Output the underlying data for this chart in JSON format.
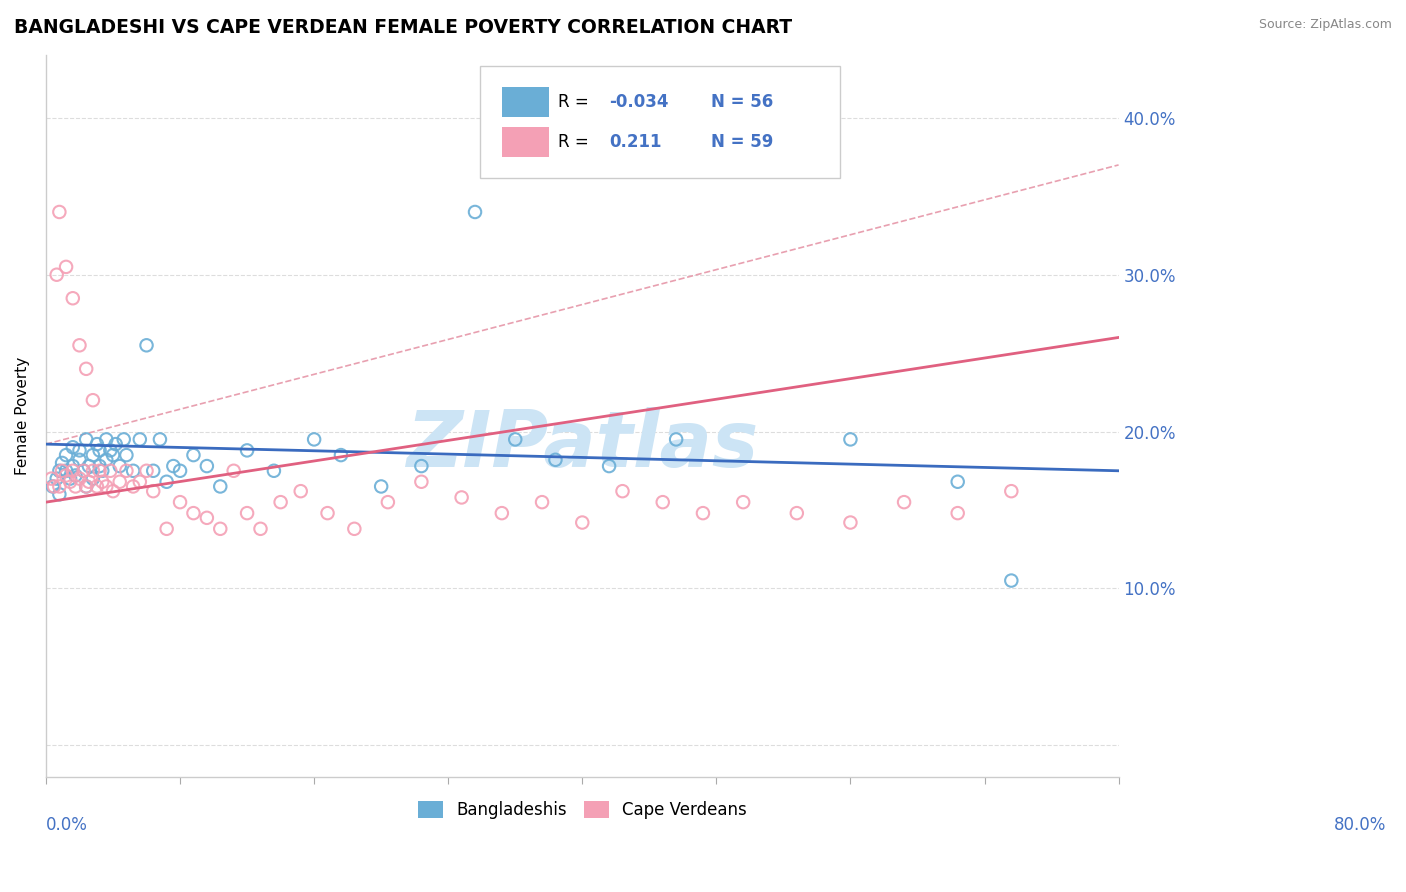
{
  "title": "BANGLADESHI VS CAPE VERDEAN FEMALE POVERTY CORRELATION CHART",
  "source": "Source: ZipAtlas.com",
  "ylabel": "Female Poverty",
  "xlim": [
    0.0,
    0.8
  ],
  "ylim": [
    -0.02,
    0.44
  ],
  "yticks": [
    0.0,
    0.1,
    0.2,
    0.3,
    0.4
  ],
  "ytick_labels": [
    "",
    "10.0%",
    "20.0%",
    "30.0%",
    "40.0%"
  ],
  "color_blue": "#6aaed6",
  "color_pink": "#f4a0b5",
  "color_blue_line": "#3a6bbf",
  "color_pink_line": "#e06080",
  "color_dash": "#e8a0b0",
  "watermark_color": "#cce4f5",
  "blue_scatter_x": [
    0.005,
    0.008,
    0.01,
    0.01,
    0.012,
    0.015,
    0.015,
    0.018,
    0.02,
    0.02,
    0.022,
    0.025,
    0.025,
    0.028,
    0.03,
    0.03,
    0.032,
    0.035,
    0.035,
    0.038,
    0.04,
    0.04,
    0.042,
    0.045,
    0.045,
    0.048,
    0.05,
    0.052,
    0.055,
    0.058,
    0.06,
    0.065,
    0.07,
    0.075,
    0.08,
    0.085,
    0.09,
    0.095,
    0.1,
    0.11,
    0.12,
    0.13,
    0.15,
    0.17,
    0.2,
    0.22,
    0.25,
    0.28,
    0.32,
    0.35,
    0.38,
    0.42,
    0.47,
    0.6,
    0.68,
    0.72
  ],
  "blue_scatter_y": [
    0.165,
    0.17,
    0.175,
    0.16,
    0.18,
    0.185,
    0.175,
    0.17,
    0.178,
    0.19,
    0.172,
    0.182,
    0.188,
    0.175,
    0.195,
    0.165,
    0.178,
    0.185,
    0.17,
    0.192,
    0.178,
    0.188,
    0.175,
    0.195,
    0.182,
    0.188,
    0.185,
    0.192,
    0.178,
    0.195,
    0.185,
    0.175,
    0.195,
    0.255,
    0.175,
    0.195,
    0.168,
    0.178,
    0.175,
    0.185,
    0.178,
    0.165,
    0.188,
    0.175,
    0.195,
    0.185,
    0.165,
    0.178,
    0.34,
    0.195,
    0.182,
    0.178,
    0.195,
    0.195,
    0.168,
    0.105
  ],
  "pink_scatter_x": [
    0.004,
    0.006,
    0.008,
    0.01,
    0.01,
    0.012,
    0.015,
    0.015,
    0.018,
    0.02,
    0.02,
    0.022,
    0.025,
    0.025,
    0.028,
    0.03,
    0.03,
    0.032,
    0.035,
    0.035,
    0.038,
    0.04,
    0.042,
    0.045,
    0.048,
    0.05,
    0.055,
    0.06,
    0.065,
    0.07,
    0.075,
    0.08,
    0.09,
    0.1,
    0.11,
    0.12,
    0.13,
    0.14,
    0.15,
    0.16,
    0.175,
    0.19,
    0.21,
    0.23,
    0.255,
    0.28,
    0.31,
    0.34,
    0.37,
    0.4,
    0.43,
    0.46,
    0.49,
    0.52,
    0.56,
    0.6,
    0.64,
    0.68,
    0.72
  ],
  "pink_scatter_y": [
    0.17,
    0.165,
    0.3,
    0.165,
    0.34,
    0.175,
    0.305,
    0.172,
    0.168,
    0.175,
    0.285,
    0.165,
    0.17,
    0.255,
    0.175,
    0.165,
    0.24,
    0.168,
    0.175,
    0.22,
    0.165,
    0.175,
    0.168,
    0.165,
    0.175,
    0.162,
    0.168,
    0.175,
    0.165,
    0.168,
    0.175,
    0.162,
    0.138,
    0.155,
    0.148,
    0.145,
    0.138,
    0.175,
    0.148,
    0.138,
    0.155,
    0.162,
    0.148,
    0.138,
    0.155,
    0.168,
    0.158,
    0.148,
    0.155,
    0.142,
    0.162,
    0.155,
    0.148,
    0.155,
    0.148,
    0.142,
    0.155,
    0.148,
    0.162
  ],
  "blue_line_x": [
    0.0,
    0.8
  ],
  "blue_line_y": [
    0.192,
    0.175
  ],
  "pink_line_x": [
    0.0,
    0.8
  ],
  "pink_line_y": [
    0.155,
    0.26
  ],
  "dash_line_x": [
    0.0,
    0.8
  ],
  "dash_line_y": [
    0.192,
    0.37
  ]
}
